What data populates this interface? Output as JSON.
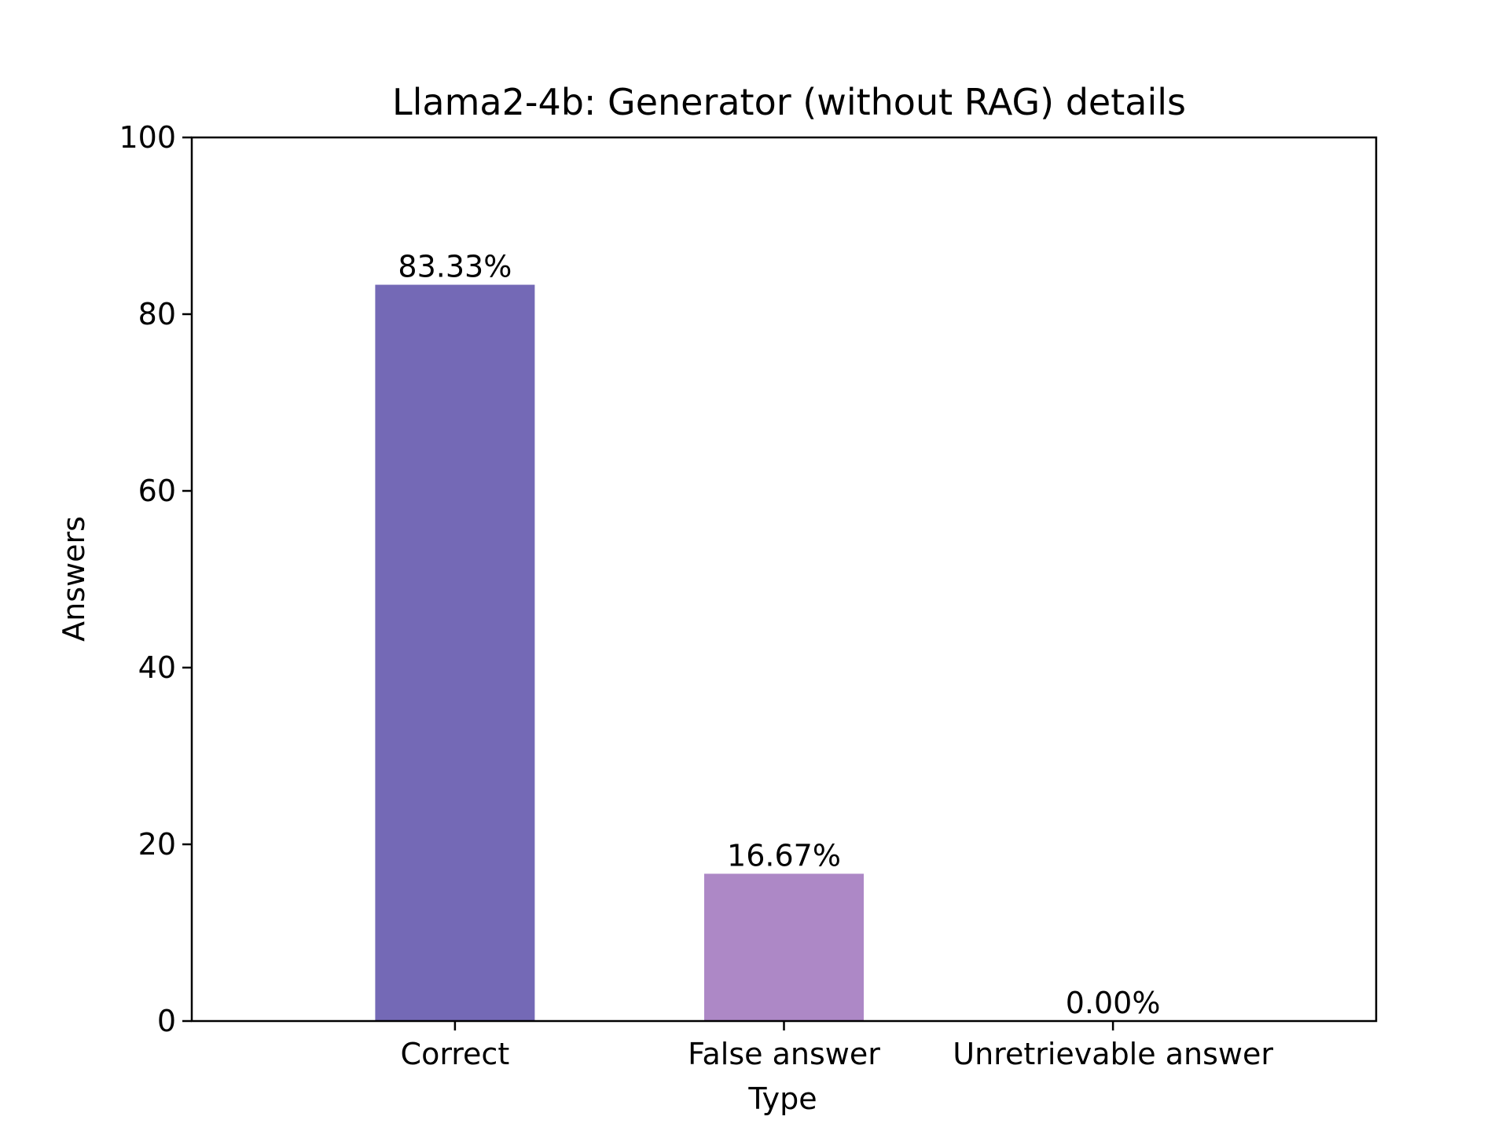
{
  "chart_data": {
    "type": "bar",
    "title": "Llama2-4b: Generator (without RAG) details",
    "xlabel": "Type",
    "ylabel": "Answers",
    "categories": [
      "Correct",
      "False answer",
      "Unretrievable answer"
    ],
    "values": [
      83.33,
      16.67,
      0.0
    ],
    "data_labels": [
      "83.33%",
      "16.67%",
      "0.00%"
    ],
    "colors": [
      "#7469b6",
      "#ad88c6",
      "#e1afd1"
    ],
    "ylim": [
      0,
      100
    ],
    "yticks": [
      0,
      20,
      40,
      60,
      80,
      100
    ],
    "ytick_labels": [
      "0",
      "20",
      "40",
      "60",
      "80",
      "100"
    ],
    "grid": false,
    "legend": "none"
  }
}
